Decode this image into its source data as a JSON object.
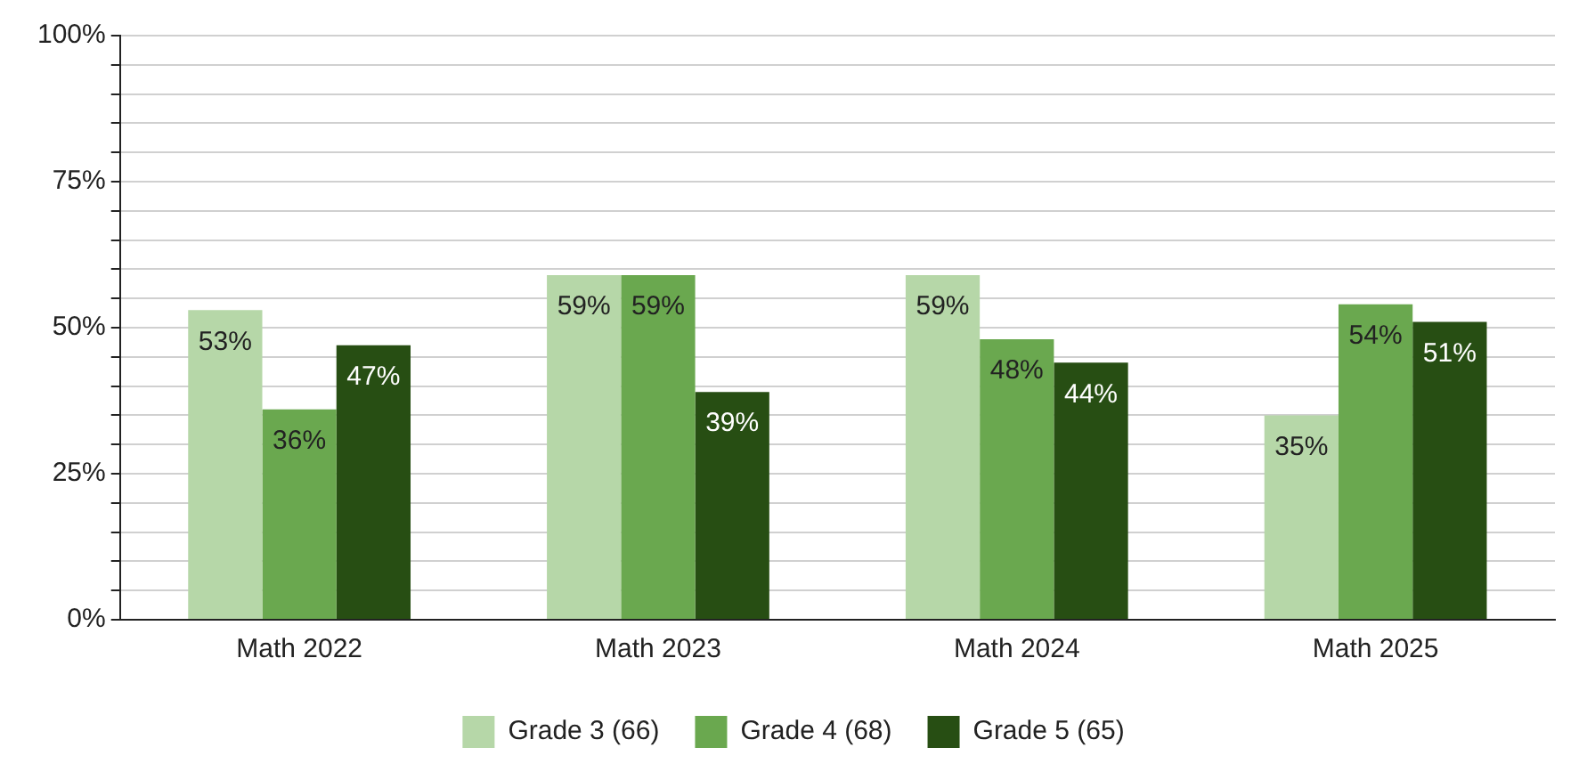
{
  "chart_data": {
    "type": "bar",
    "categories": [
      "Math 2022",
      "Math 2023",
      "Math 2024",
      "Math 2025"
    ],
    "series": [
      {
        "name": "Grade 3 (66)",
        "color": "#b6d7a8",
        "values": [
          53,
          59,
          59,
          35
        ],
        "value_labels": [
          "53%",
          "59%",
          "59%",
          "35%"
        ]
      },
      {
        "name": "Grade 4 (68)",
        "color": "#6aa84f",
        "values": [
          36,
          59,
          48,
          54
        ],
        "value_labels": [
          "36%",
          "59%",
          "48%",
          "54%"
        ]
      },
      {
        "name": "Grade 5 (65)",
        "color": "#274e13",
        "values": [
          47,
          39,
          44,
          51
        ],
        "value_labels": [
          "47%",
          "39%",
          "44%",
          "51%"
        ]
      }
    ],
    "ylim": [
      0,
      100
    ],
    "yticks": [
      {
        "value": 0,
        "label": "0%"
      },
      {
        "value": 5,
        "label": null
      },
      {
        "value": 10,
        "label": null
      },
      {
        "value": 15,
        "label": null
      },
      {
        "value": 20,
        "label": null
      },
      {
        "value": 25,
        "label": "25%"
      },
      {
        "value": 30,
        "label": null
      },
      {
        "value": 35,
        "label": null
      },
      {
        "value": 40,
        "label": null
      },
      {
        "value": 45,
        "label": null
      },
      {
        "value": 50,
        "label": "50%"
      },
      {
        "value": 55,
        "label": null
      },
      {
        "value": 60,
        "label": null
      },
      {
        "value": 65,
        "label": null
      },
      {
        "value": 70,
        "label": null
      },
      {
        "value": 75,
        "label": "75%"
      },
      {
        "value": 80,
        "label": null
      },
      {
        "value": 85,
        "label": null
      },
      {
        "value": 90,
        "label": null
      },
      {
        "value": 95,
        "label": null
      },
      {
        "value": 100,
        "label": "100%"
      }
    ],
    "grid": "y",
    "legend": "bottom"
  }
}
